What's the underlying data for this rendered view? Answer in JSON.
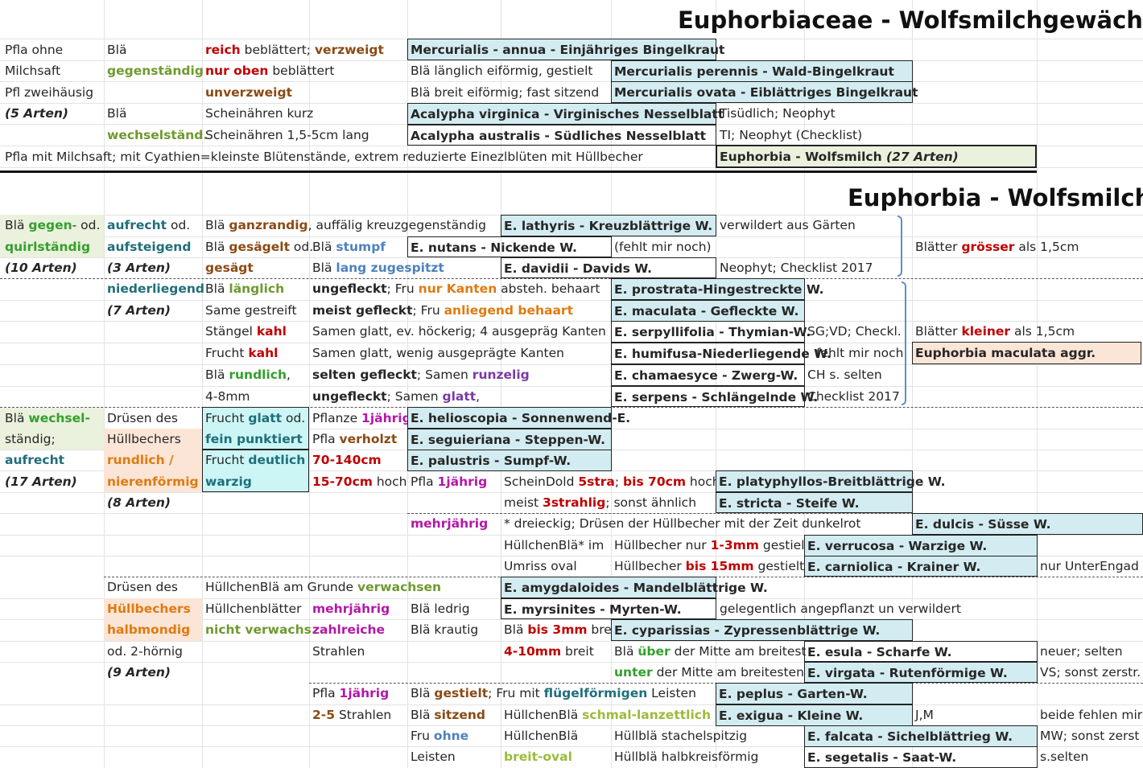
{
  "title1": "Euphorbiaceae - Wolfsmilchgewächse",
  "title2": "Euphorbia - Wolfsmilch",
  "t": {
    "pfla_ohne": "Pfla ohne",
    "milchsaft": "Milchsaft",
    "pfl_zweih": "Pfl zweihäusig",
    "arten5": "(5 Arten)",
    "bla": "Blä",
    "gegenstaendig": "gegenständig",
    "bla2": "Blä",
    "wechselst": "wechselständ.",
    "reich": "reich",
    "beblaettert": " beblättert; ",
    "verzweigt": "verzweigt",
    "nur_oben": "nur oben",
    "beblaettert2": "  beblättert",
    "unverzweigt": "unverzweigt",
    "scheinaehren_kurz": "Scheinähren kurz",
    "scheinaehren_lang": "Scheinähren 1,5-5cm lang",
    "merc_annua": "Mercurialis - annua - Einjähriges Bingelkraut",
    "bla_laenglich": "Blä länglich eiförmig, gestielt",
    "merc_per": "Mercurialis perennis - Wald-Bingelkraut",
    "bla_breit": "Blä breit eiförmig; fast sitzend",
    "merc_ovata": "Mercurialis ovata - Eiblättriges Bingelkraut",
    "acal_virg": "Acalypha virginica - Virginisches Nesselblatt",
    "tisuedlich": "Tisüdlich; Neophyt",
    "acal_austr": "Acalypha australis - Südliches Nesselblatt",
    "ti_neophyt": "TI; Neophyt (Checklist)",
    "pfla_mit": "Pfla mit Milchsaft; mit Cyathien=kleinste Blütenstände, extrem reduzierte Einezlblüten mit Hüllbecher",
    "euphorbia_box": "Euphorbia - Wolfsmilch ",
    "arten27": "(27 Arten)",
    "bla_gegen": "Blä ",
    "gegen": "gegen",
    "od": "- od.",
    "quirlst": "quirlständig",
    "arten10": "(10 Arten)",
    "aufrecht_od": "aufrecht",
    "od2": " od.",
    "aufsteigend": "aufsteigend",
    "arten3": "(3 Arten)",
    "bla_ganz_pre": "Blä ",
    "ganzrandig": "ganzrandig",
    "ganz_post": ", auffälig kreuzgegenständig",
    "bla_ges_pre": "Blä ",
    "gesaegelt": "gesägelt",
    "od3": " od.",
    "gesaegt": "gesägt",
    "bla_stumpf_pre": "Blä ",
    "stumpf": "stumpf",
    "bla_lang_pre": "Blä ",
    "lang_zug": "lang zugespitzt",
    "e_lathyris": "E. lathyris - Kreuzblättrige W.",
    "verwildert": "verwildert aus Gärten",
    "e_nutans": "E. nutans - Nickende W.",
    "fehlt_noch": "(fehlt mir noch)",
    "e_davidii": "E. davidii - Davids W.",
    "neophyt_check": "Neophyt; Checklist 2017",
    "bl_groesser_pre": "Blätter ",
    "groesser": "grösser",
    "bl_groesser_post": " als 1,5cm",
    "niederliegend": "niederliegend",
    "arten7": "(7 Arten)",
    "bla_laenglich2_pre": "Blä ",
    "laenglich": "länglich",
    "same_gestreift": "Same gestreift",
    "staengel_pre": "Stängel ",
    "kahl1": "kahl",
    "frucht_pre": "Frucht ",
    "kahl2": "kahl",
    "bla_rund_pre": "Blä ",
    "rundlich": "rundlich",
    "komma": ",",
    "mm48": "4-8mm",
    "ungefleckt": "ungefleckt",
    "fru_nur_pre": "; Fru ",
    "nur": "nur",
    "kanten": "  Kanten",
    "absteh": " absteh. behaart",
    "meist_gefl": "meist gefleckt",
    "fru_anl_pre": "; Fru ",
    "anliegend": "anliegend behaart",
    "samen_glatt_hoeck": "Samen glatt, ev. höckerig; 4 ausgepräg Kanten",
    "samen_glatt_wenig": "Samen glatt, wenig ausgeprägte Kanten",
    "selten_gefl": "selten gefleckt",
    "samen_pre": "; Samen ",
    "runzelig": "runzelig",
    "ungefleckt2": "ungefleckt",
    "samen_pre2": "; Samen ",
    "glatt": "glatt",
    "komma2": ",",
    "e_prostrata": "E. prostrata-Hingestreckte W.",
    "e_maculata": "E. maculata - Gefleckte W.",
    "e_serpyll": "E. serpyllifolia - Thymian-W.",
    "sg_vd": "SG;VD; Checkl.",
    "e_humifusa": "E. humifusa-Niederliegende W.",
    "fehlt_noch2": "fehlt mir noch",
    "e_chamaesyce": "E. chamaesyce - Zwerg-W.",
    "ch_selten": "CH s. selten",
    "e_serpens": "E. serpens - Schlängelnde W.",
    "checklist2017": "Checklist 2017",
    "bl_kleiner_pre": "Blätter ",
    "kleiner": "kleiner",
    "bl_kleiner_post": " als 1,5cm",
    "maculata_aggr": "Euphorbia maculata aggr.",
    "bla_wechsel_pre": "Blä ",
    "wechsel": "wechsel-",
    "staendig": "ständig;",
    "aufrecht2": "aufrecht",
    "arten17": "(17 Arten)",
    "druesen_des": "Drüsen des",
    "huellbechers": "Hüllbechers",
    "rundlich_slash": "rundlich /",
    "nierenf": "nierenförmig",
    "arten8": "(8 Arten)",
    "frucht_glatt_pre": "Frucht ",
    "glatt2": "glatt",
    "od4": " od.",
    "fein_punkt": "fein punktiert",
    "frucht_deut_pre": "Frucht ",
    "deutlich": "deutlich",
    "warzig": "warzig",
    "pflanze_pre": "Pflanze ",
    "jaehrig1": "1jährig",
    "pfla_pre": "Pfla ",
    "verholzt": "verholzt",
    "cm70140": "70-140cm",
    "cm1570": "15-70cm",
    "hoch": " hoch",
    "e_helio": "E. helioscopia - Sonnenwend-E.",
    "e_segui": "E. seguieriana - Steppen-W.",
    "e_palustris": "E. palustris - Sumpf-W.",
    "pfla_pre2": "Pfla ",
    "jaehrig2": "1jährig",
    "scheindold_pre": "ScheinDold ",
    "stra5": "5stra",
    "semi": "; ",
    "bis70": "bis 70cm",
    "hoch2": " hoch",
    "e_platy": "E. platyphyllos-Breitblättrige W.",
    "meist_pre": "meist ",
    "strahlig3": "3strahlig",
    "sonst_aehnl": "; sonst ähnlich",
    "e_stricta": "E. stricta - Steife W.",
    "mehrjaehrig": "mehrjährig",
    "dreieckig": "* dreieckig; Drüsen der Hüllbecher mit der Zeit dunkelrot",
    "e_dulcis": "E. dulcis - Süsse W.",
    "huellchenbla_im": "HüllchenBlä* im",
    "hb_nur_pre": "Hüllbecher nur ",
    "mm13": "1-3mm",
    "gestielt1": " gestielt",
    "e_verrucosa": "E. verrucosa - Warzige W.",
    "umriss_oval": "Umriss oval",
    "hb_bis_pre": "Hüllbecher ",
    "bis15": "bis 15mm",
    "gestielt2": " gestielt",
    "e_carniolica": "E. carniolica - Krainer W.",
    "nur_unterengad": "nur UnterEngad",
    "druesen_des2": "Drüsen des",
    "huellbechers2": "Hüllbechers",
    "halbmondig": "halbmondig",
    "od_2hoernig": "od. 2-hörnig",
    "arten9": "(9 Arten)",
    "hb_am_grunde_pre": "HüllchenBlä am Grunde ",
    "verwachsen": "verwachsen",
    "e_amygd": "E. amygdaloides - Mandelblättrige W.",
    "huellchenblaetter": "Hüllchenblätter",
    "nicht_verw": "nicht verwachs.",
    "mehrjaehrig2": "mehrjährig",
    "zahlreiche": "zahlreiche",
    "strahlen": "Strahlen",
    "bla_ledrig": "Blä ledrig",
    "bla_krautig": "Blä krautig",
    "e_myrsinites": "E. myrsinites - Myrten-W.",
    "gelegentlich": "gelegentlich angepflanzt un verwildert",
    "bla_bis_pre": "Blä ",
    "bis3": "bis 3mm",
    "bre": " bre",
    "e_cypar": "E. cyparissias - Zypressenblättrige W.",
    "mm410": "4-10mm",
    "breit": " breit",
    "bla_ueber_pre": "Blä ",
    "ueber": "über",
    "ueber_post": " der Mitte am breitest",
    "e_esula": "E. esula - Scharfe W.",
    "neuer_selten": "neuer; selten",
    "unter": "unter",
    "unter_post": " der Mitte am breitesten",
    "e_virgata": "E. virgata - Rutenförmige W.",
    "vs_sonst": "VS; sonst zerstr.",
    "pfla_pre3": "Pfla ",
    "jaehrig3": "1jährig",
    "bla_gest_pre": "Blä ",
    "gestielt3": "gestielt",
    "fru_mit_pre": "; Fru mit ",
    "fluegel": "flügelförmigen",
    "leisten_post": " Leisten",
    "e_peplus": "E. peplus - Garten-W.",
    "strahlen25": "2-5",
    "strahlen25_post": " Strahlen",
    "bla_sitz_pre": "Blä ",
    "sitzend": "sitzend",
    "hcb_schmal_pre": "HüllchenBlä ",
    "schmal": "schmal-lanzettlich",
    "e_exigua": "E. exigua - Kleine W.",
    "jm": "J,M",
    "beide_fehlen": "beide fehlen mir",
    "fru_pre": "Fru ",
    "ohne": "ohne",
    "huellchenbla2": "HüllchenBlä",
    "huellbla_stachel": "Hüllblä stachelspitzig",
    "e_falcata": "E. falcata - Sichelblättrieg W.",
    "mw_sonst": "MW; sonst zerst",
    "leisten": "Leisten",
    "breit_oval": "breit-oval",
    "huellbla_halbkreis": "Hüllblä halbkreisförmig",
    "e_segetalis": "E. segetalis - Saat-W.",
    "s_selten": "s.selten"
  }
}
